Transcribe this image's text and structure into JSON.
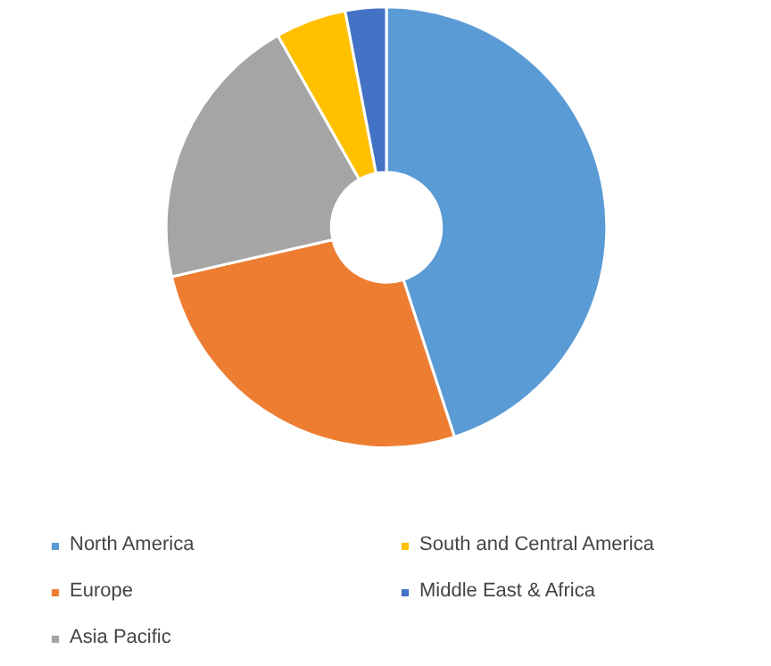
{
  "chart_data": {
    "type": "donut",
    "categories": [
      "North America",
      "Europe",
      "Asia Pacific",
      "South and Central America",
      "Middle East & Africa"
    ],
    "values": [
      45,
      26.4,
      20.4,
      5.2,
      3.0
    ],
    "colors": [
      "#5b9bd5",
      "#ed7d31",
      "#a5a5a5",
      "#ffc000",
      "#4472c4"
    ],
    "legend": "bottom"
  }
}
